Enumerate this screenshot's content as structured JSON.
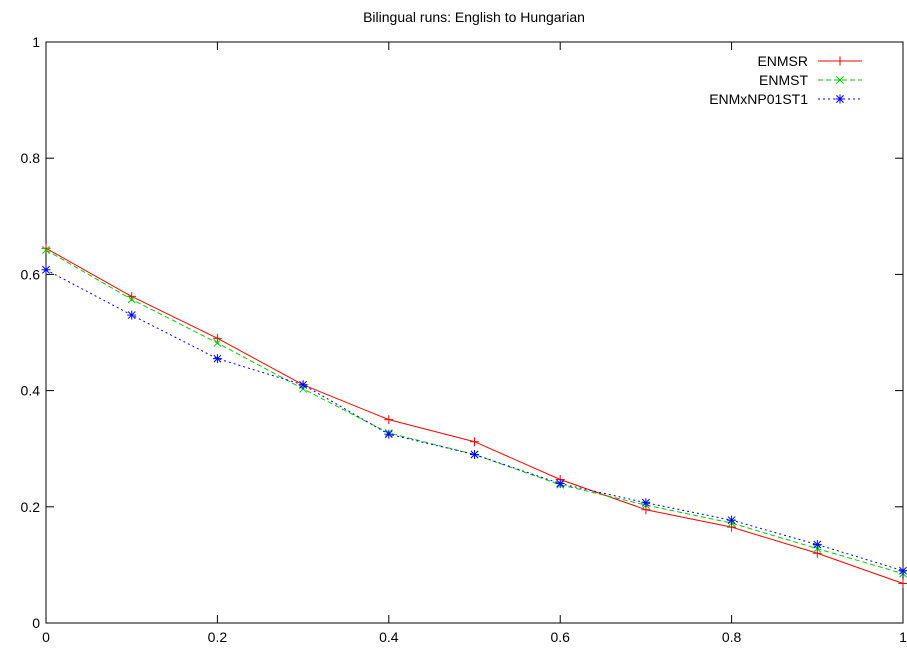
{
  "chart_data": {
    "type": "line",
    "title": "Bilingual runs: English to Hungarian",
    "xlabel": "",
    "ylabel": "",
    "xlim": [
      0,
      1
    ],
    "ylim": [
      0,
      1
    ],
    "x_ticks": [
      "0",
      "0.2",
      "0.4",
      "0.6",
      "0.8",
      "1"
    ],
    "y_ticks": [
      "0",
      "0.2",
      "0.4",
      "0.6",
      "0.8",
      "1"
    ],
    "grid": false,
    "legend_position": "top-right",
    "x": [
      0,
      0.1,
      0.2,
      0.3,
      0.4,
      0.5,
      0.6,
      0.7,
      0.8,
      0.9,
      1.0
    ],
    "series": [
      {
        "name": "ENMSR",
        "color": "#ff0000",
        "marker": "plus",
        "dash": "solid",
        "values": [
          0.645,
          0.562,
          0.49,
          0.41,
          0.35,
          0.312,
          0.247,
          0.195,
          0.165,
          0.12,
          0.068
        ]
      },
      {
        "name": "ENMST",
        "color": "#00cc00",
        "marker": "cross",
        "dash": "dashed",
        "values": [
          0.642,
          0.557,
          0.482,
          0.403,
          0.327,
          0.29,
          0.238,
          0.203,
          0.172,
          0.128,
          0.085
        ]
      },
      {
        "name": "ENMxNP01ST1",
        "color": "#0000ff",
        "marker": "star",
        "dash": "dotted",
        "values": [
          0.608,
          0.53,
          0.455,
          0.41,
          0.325,
          0.29,
          0.24,
          0.207,
          0.177,
          0.135,
          0.09
        ]
      }
    ]
  }
}
